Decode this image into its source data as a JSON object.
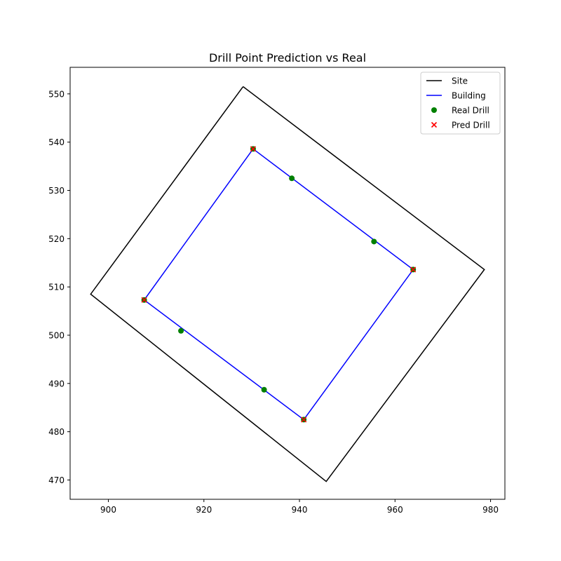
{
  "chart_data": {
    "type": "scatter",
    "title": "Drill Point Prediction vs Real",
    "xlabel": "",
    "ylabel": "",
    "xlim": [
      892,
      983
    ],
    "ylim": [
      466,
      555.5
    ],
    "xticks": [
      900,
      920,
      940,
      960,
      980
    ],
    "yticks": [
      470,
      480,
      490,
      500,
      510,
      520,
      530,
      540,
      550
    ],
    "grid": false,
    "legend_position": "top-right",
    "legend": [
      "Site",
      "Building",
      "Real Drill",
      "Pred Drill"
    ],
    "series": [
      {
        "name": "Site",
        "kind": "line",
        "color": "#000000",
        "points": [
          [
            928.2,
            551.5
          ],
          [
            978.7,
            513.6
          ],
          [
            945.6,
            469.7
          ],
          [
            896.3,
            508.5
          ],
          [
            928.2,
            551.5
          ]
        ]
      },
      {
        "name": "Building",
        "kind": "line",
        "color": "#0000ff",
        "points": [
          [
            930.3,
            538.6
          ],
          [
            963.8,
            513.6
          ],
          [
            940.9,
            482.5
          ],
          [
            907.5,
            507.3
          ],
          [
            930.3,
            538.6
          ]
        ]
      },
      {
        "name": "Real Drill",
        "kind": "scatter-circle",
        "color": "#008000",
        "points": [
          [
            930.3,
            538.6
          ],
          [
            938.4,
            532.5
          ],
          [
            955.6,
            519.4
          ],
          [
            963.8,
            513.6
          ],
          [
            907.5,
            507.3
          ],
          [
            915.2,
            500.9
          ],
          [
            932.6,
            488.7
          ],
          [
            940.9,
            482.5
          ]
        ]
      },
      {
        "name": "Pred Drill",
        "kind": "scatter-x",
        "color": "#ff0000",
        "points": [
          [
            930.3,
            538.6
          ],
          [
            963.8,
            513.6
          ],
          [
            907.5,
            507.3
          ],
          [
            940.9,
            482.5
          ]
        ]
      }
    ]
  }
}
